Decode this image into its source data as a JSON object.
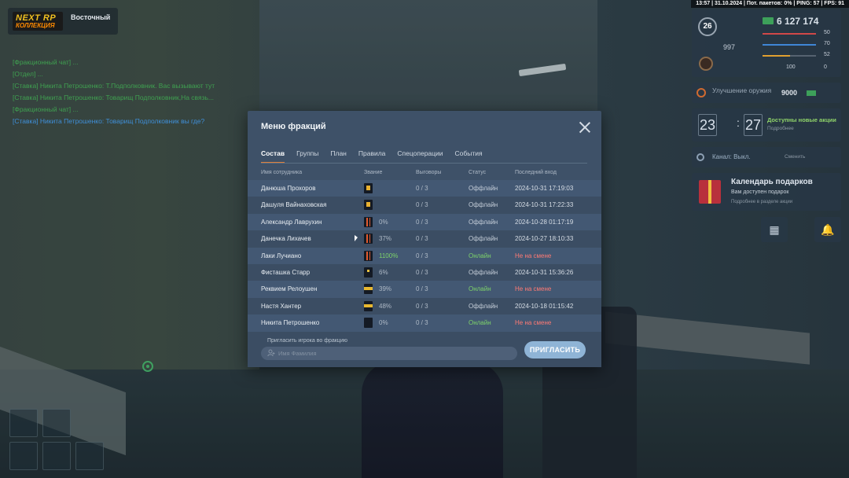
{
  "status_bar": {
    "text": "13:57 | 31.10.2024 | Пот. пакетов: 0% | PING: 57 | FPS: 91"
  },
  "logo": {
    "brand": "NEXT RP",
    "sub": "КОЛЛЕКЦИЯ",
    "server": "Восточный"
  },
  "chat": [
    {
      "text": "[Фракционный чат] ...",
      "color": "green"
    },
    {
      "text": "[Отдел] ...",
      "color": "green"
    },
    {
      "text": "[Ставка] Никита Петрошенко: Т.Подполковник. Вас вызывают тут",
      "color": "green"
    },
    {
      "text": "[Ставка] Никита Петрошенко: Товарищ Подполковник,На связь...",
      "color": "green"
    },
    {
      "text": "[Фракционный чат] ...",
      "color": "green"
    },
    {
      "text": "[Ставка] Никита Петрошенко: Товарищ Подполковник вы где?",
      "color": "blue"
    }
  ],
  "hud": {
    "level": "26",
    "money": "6 127 174",
    "donate": "997",
    "stats": {
      "health": "50",
      "armor": "70",
      "hunger": "52",
      "score_a": "100",
      "score_b": "0"
    },
    "weapon_upgrade": {
      "title": "Улучшение оружия",
      "price": "9000"
    },
    "timer": {
      "min": "23",
      "sec": "27",
      "title": "Доступны новые акции",
      "sub": "Подробнее"
    },
    "radio": {
      "label": "Канал: Выкл.",
      "change": "Сменить"
    },
    "calendar": {
      "title": "Календарь подарков",
      "sub": "Вам доступен подарок",
      "more": "Подробнее в разделе акции"
    }
  },
  "modal": {
    "title": "Меню фракций",
    "tabs": [
      "Состав",
      "Группы",
      "План",
      "Правила",
      "Спецоперации",
      "События"
    ],
    "active_tab": "Состав",
    "columns": {
      "name": "Имя сотрудника",
      "rank": "Звание",
      "warnings": "Выговоры",
      "status": "Статус",
      "last_login": "Последний вход"
    },
    "members": [
      {
        "name": "Данюша Прохоров",
        "rank_icon": "gold",
        "rank_pct": "",
        "warnings": "0 / 3",
        "status": "Оффлайн",
        "last": "2024-10-31 17:19:03"
      },
      {
        "name": "Дашуля Вайнаховская",
        "rank_icon": "gold",
        "rank_pct": "",
        "warnings": "0 / 3",
        "status": "Оффлайн",
        "last": "2024-10-31 17:22:33"
      },
      {
        "name": "Александр Лаврухин",
        "rank_icon": "stripes",
        "rank_pct": "0%",
        "warnings": "0 / 3",
        "status": "Оффлайн",
        "last": "2024-10-28 01:17:19"
      },
      {
        "name": "Данечка Лихачев",
        "rank_icon": "stripes",
        "rank_pct": "37%",
        "warnings": "0 / 3",
        "status": "Оффлайн",
        "last": "2024-10-27 18:10:33"
      },
      {
        "name": "Лаки Лучиано",
        "rank_icon": "stripes",
        "rank_pct": "1100%",
        "warnings": "0 / 3",
        "status": "Онлайн",
        "last": "Не на смене"
      },
      {
        "name": "Фисташка Старр",
        "rank_icon": "dot",
        "rank_pct": "6%",
        "warnings": "0 / 3",
        "status": "Оффлайн",
        "last": "2024-10-31 15:36:26"
      },
      {
        "name": "Реквием Релоушен",
        "rank_icon": "yellow-band",
        "rank_pct": "39%",
        "warnings": "0 / 3",
        "status": "Онлайн",
        "last": "Не на смене"
      },
      {
        "name": "Настя Хантер",
        "rank_icon": "yellow-band",
        "rank_pct": "48%",
        "warnings": "0 / 3",
        "status": "Оффлайн",
        "last": "2024-10-18 01:15:42"
      },
      {
        "name": "Никита Петрошенко",
        "rank_icon": "plain",
        "rank_pct": "0%",
        "warnings": "0 / 3",
        "status": "Онлайн",
        "last": "Не на смене"
      }
    ],
    "invite": {
      "label": "Пригласить игрока во фракцию",
      "placeholder": "Имя Фамилия",
      "button": "ПРИГЛАСИТЬ"
    }
  },
  "colors": {
    "modal_bg": "#3e5168",
    "accent_tab": "#e0803a",
    "online": "#7ed36a",
    "off_shift": "#ff7a74",
    "invite_button": "#8fb4d6"
  }
}
